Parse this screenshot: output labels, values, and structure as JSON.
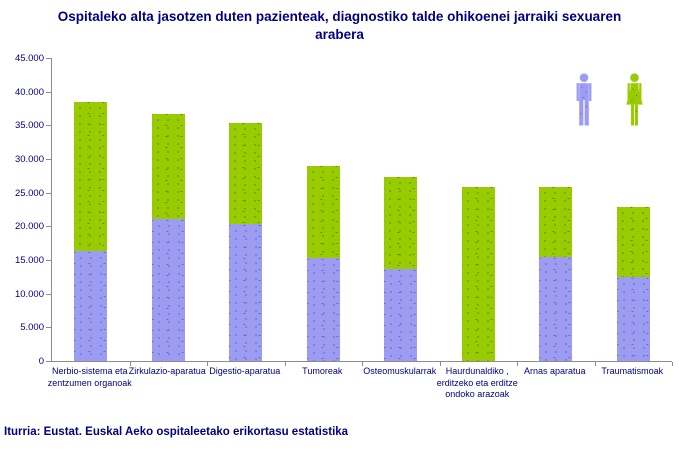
{
  "title": "Ospitaleko alta jasotzen duten pazienteak, diagnostiko talde ohikoenei jarraiki sexuaren arabera",
  "source": "Iturria: Eustat. Euskal Aeko ospitaleetako erikortasu estatistika",
  "colors": {
    "male_bar": "#9c9cf2",
    "male_speckle": "#6565c5",
    "female_bar": "#99cc00",
    "female_speckle": "#5d8a00",
    "text": "#000080",
    "axis": "#8c8c8c"
  },
  "chart_data": {
    "type": "bar",
    "stacked": true,
    "grid": false,
    "legend_position": "top-right",
    "legend_icons": [
      "man-icon",
      "woman-icon"
    ],
    "categories": [
      "Nerbio-sistema eta zentzumen organoak",
      "Zirkulazio-aparatua",
      "Digestio-aparatua",
      "Tumoreak",
      "Osteomuskularrak",
      "Haurdunaldiko , erditzeko eta erditze ondoko arazoak",
      "Arnas aparatua",
      "Traumatismoak"
    ],
    "series": [
      {
        "name": "male",
        "color": "#9c9cf2",
        "values": [
          16400,
          21100,
          20400,
          15300,
          13700,
          0,
          15400,
          12500
        ]
      },
      {
        "name": "female",
        "color": "#99cc00",
        "values": [
          22100,
          15600,
          14900,
          13700,
          13600,
          25900,
          10500,
          10400
        ]
      }
    ],
    "totals": [
      38500,
      36700,
      35300,
      29000,
      27300,
      25900,
      25900,
      22900
    ],
    "ylim": [
      0,
      45000
    ],
    "ytick_step": 5000,
    "ytick_labels": [
      "45.000",
      "40.000",
      "35.000",
      "30.000",
      "25.000",
      "20.000",
      "15.000",
      "10.000",
      "5.000",
      "0"
    ]
  }
}
